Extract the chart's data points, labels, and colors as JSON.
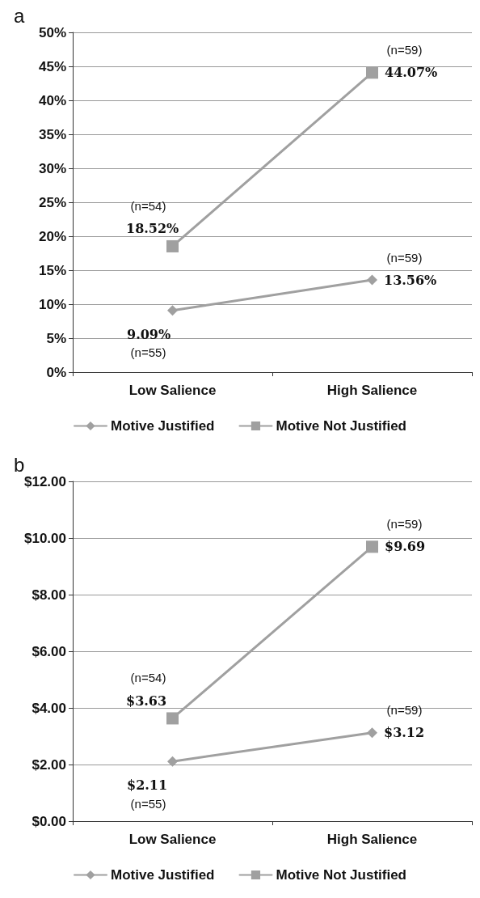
{
  "chart_data": [
    {
      "type": "line",
      "title": "a",
      "categories": [
        "Low Salience",
        "High Salience"
      ],
      "series": [
        {
          "name": "Motive Justified",
          "color": "#a0a0a0",
          "marker": "diamond",
          "values": [
            9.09,
            13.56
          ],
          "value_labels": [
            "9.09%",
            "13.56%"
          ]
        },
        {
          "name": "Motive Not Justified",
          "color": "#a0a0a0",
          "marker": "square",
          "values": [
            18.52,
            44.07
          ],
          "value_labels": [
            "18.52%",
            "44.07%"
          ]
        }
      ],
      "ylim": [
        0,
        50
      ],
      "yticks": [
        {
          "value": 0,
          "label": "0%"
        },
        {
          "value": 5,
          "label": "5%"
        },
        {
          "value": 10,
          "label": "10%"
        },
        {
          "value": 15,
          "label": "15%"
        },
        {
          "value": 20,
          "label": "20%"
        },
        {
          "value": 25,
          "label": "25%"
        },
        {
          "value": 30,
          "label": "30%"
        },
        {
          "value": 35,
          "label": "35%"
        },
        {
          "value": 40,
          "label": "40%"
        },
        {
          "value": 45,
          "label": "45%"
        },
        {
          "value": 50,
          "label": "50%"
        }
      ],
      "grid": "y",
      "legend": "bottom",
      "annotations": [
        {
          "text": "(n=55)",
          "x": "Low Salience",
          "y": 9.09
        },
        {
          "text": "(n=54)",
          "x": "Low Salience",
          "y": 18.52
        },
        {
          "text": "(n=59)",
          "x": "High Salience",
          "y": 13.56
        },
        {
          "text": "(n=59)",
          "x": "High Salience",
          "y": 44.07
        }
      ]
    },
    {
      "type": "line",
      "title": "b",
      "categories": [
        "Low Salience",
        "High Salience"
      ],
      "series": [
        {
          "name": "Motive Justified",
          "color": "#a0a0a0",
          "marker": "diamond",
          "values": [
            2.11,
            3.12
          ],
          "value_labels": [
            "$2.11",
            "$3.12"
          ]
        },
        {
          "name": "Motive Not Justified",
          "color": "#a0a0a0",
          "marker": "square",
          "values": [
            3.63,
            9.69
          ],
          "value_labels": [
            "$3.63",
            "$9.69"
          ]
        }
      ],
      "ylim": [
        0,
        12
      ],
      "yticks": [
        {
          "value": 0,
          "label": "$0.00"
        },
        {
          "value": 2,
          "label": "$2.00"
        },
        {
          "value": 4,
          "label": "$4.00"
        },
        {
          "value": 6,
          "label": "$6.00"
        },
        {
          "value": 8,
          "label": "$8.00"
        },
        {
          "value": 10,
          "label": "$10.00"
        },
        {
          "value": 12,
          "label": "$12.00"
        }
      ],
      "grid": "y",
      "legend": "bottom",
      "annotations": [
        {
          "text": "(n=55)",
          "x": "Low Salience",
          "y": 2.11
        },
        {
          "text": "(n=54)",
          "x": "Low Salience",
          "y": 3.63
        },
        {
          "text": "(n=59)",
          "x": "High Salience",
          "y": 3.12
        },
        {
          "text": "(n=59)",
          "x": "High Salience",
          "y": 9.69
        }
      ]
    }
  ]
}
